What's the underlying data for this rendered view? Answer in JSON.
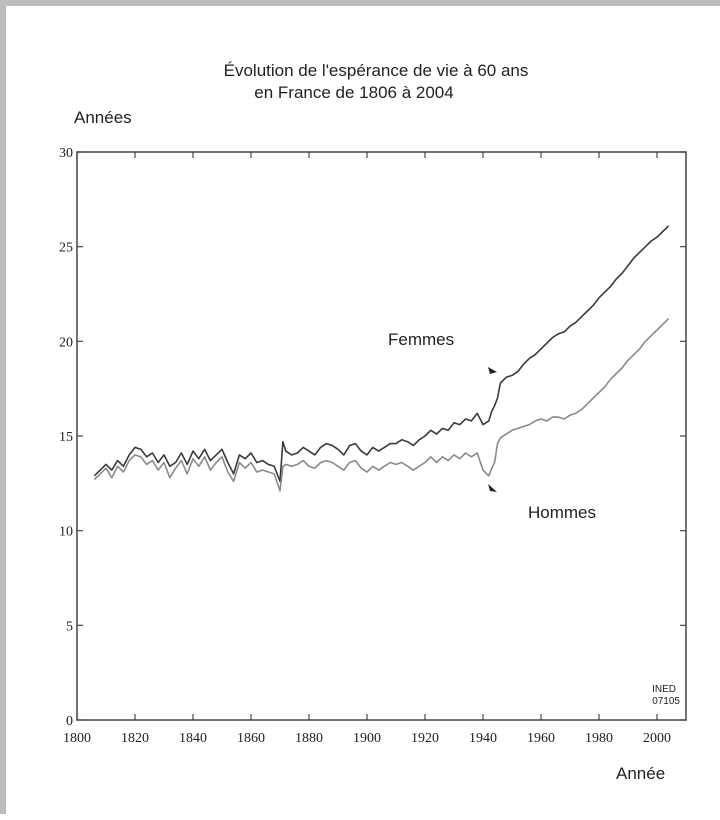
{
  "chart_data": {
    "type": "line",
    "title_line1": "Évolution de l'espérance de vie à 60 ans",
    "title_line2": "en France de 1806 à 2004",
    "ylabel": "Années",
    "xlabel": "Année",
    "ylim": [
      0,
      30
    ],
    "xlim": [
      1800,
      2010
    ],
    "y_ticks": [
      0,
      5,
      10,
      15,
      20,
      25,
      30
    ],
    "x_ticks": [
      1800,
      1820,
      1840,
      1860,
      1880,
      1900,
      1920,
      1940,
      1960,
      1980,
      2000
    ],
    "x_tick_labels": [
      "1800",
      "1820",
      "1840",
      "1860",
      "1880",
      "1900",
      "1920",
      "1940",
      "1960",
      "1980",
      "2000"
    ],
    "grid": false,
    "credit": [
      "INED",
      "07105"
    ],
    "series": [
      {
        "name": "Femmes",
        "color": "#3a3a3a",
        "x": [
          1806,
          1808,
          1810,
          1812,
          1814,
          1816,
          1818,
          1820,
          1822,
          1824,
          1826,
          1828,
          1830,
          1832,
          1834,
          1836,
          1838,
          1840,
          1842,
          1844,
          1846,
          1848,
          1850,
          1852,
          1854,
          1856,
          1858,
          1860,
          1862,
          1864,
          1866,
          1868,
          1870,
          1871,
          1872,
          1874,
          1876,
          1878,
          1880,
          1882,
          1884,
          1886,
          1888,
          1890,
          1892,
          1894,
          1896,
          1898,
          1900,
          1902,
          1904,
          1906,
          1908,
          1910,
          1912,
          1914,
          1916,
          1918,
          1920,
          1922,
          1924,
          1926,
          1928,
          1930,
          1932,
          1934,
          1936,
          1938,
          1940,
          1942,
          1943,
          1944,
          1945,
          1946,
          1948,
          1950,
          1952,
          1954,
          1956,
          1958,
          1960,
          1962,
          1964,
          1966,
          1968,
          1970,
          1972,
          1974,
          1976,
          1978,
          1980,
          1982,
          1984,
          1986,
          1988,
          1990,
          1992,
          1994,
          1996,
          1998,
          2000,
          2002,
          2004
        ],
        "values": [
          12.9,
          13.2,
          13.5,
          13.2,
          13.7,
          13.4,
          14.0,
          14.4,
          14.3,
          13.9,
          14.1,
          13.6,
          14.0,
          13.4,
          13.6,
          14.1,
          13.5,
          14.2,
          13.8,
          14.3,
          13.7,
          14.0,
          14.3,
          13.6,
          13.0,
          14.0,
          13.8,
          14.1,
          13.6,
          13.7,
          13.5,
          13.4,
          12.6,
          14.7,
          14.2,
          14.0,
          14.1,
          14.4,
          14.2,
          14.0,
          14.4,
          14.6,
          14.5,
          14.3,
          14.0,
          14.5,
          14.6,
          14.2,
          14.0,
          14.4,
          14.2,
          14.4,
          14.6,
          14.6,
          14.8,
          14.7,
          14.5,
          14.8,
          15.0,
          15.3,
          15.1,
          15.4,
          15.3,
          15.7,
          15.6,
          15.9,
          15.8,
          16.2,
          15.6,
          15.8,
          16.3,
          16.6,
          17.0,
          17.8,
          18.1,
          18.2,
          18.4,
          18.8,
          19.1,
          19.3,
          19.6,
          19.9,
          20.2,
          20.4,
          20.5,
          20.8,
          21.0,
          21.3,
          21.6,
          21.9,
          22.3,
          22.6,
          22.9,
          23.3,
          23.6,
          24.0,
          24.4,
          24.7,
          25.0,
          25.3,
          25.5,
          25.8,
          26.1
        ]
      },
      {
        "name": "Hommes",
        "color": "#8a8a8a",
        "x": [
          1806,
          1808,
          1810,
          1812,
          1814,
          1816,
          1818,
          1820,
          1822,
          1824,
          1826,
          1828,
          1830,
          1832,
          1834,
          1836,
          1838,
          1840,
          1842,
          1844,
          1846,
          1848,
          1850,
          1852,
          1854,
          1856,
          1858,
          1860,
          1862,
          1864,
          1866,
          1868,
          1870,
          1871,
          1872,
          1874,
          1876,
          1878,
          1880,
          1882,
          1884,
          1886,
          1888,
          1890,
          1892,
          1894,
          1896,
          1898,
          1900,
          1902,
          1904,
          1906,
          1908,
          1910,
          1912,
          1914,
          1916,
          1918,
          1920,
          1922,
          1924,
          1926,
          1928,
          1930,
          1932,
          1934,
          1936,
          1938,
          1940,
          1942,
          1943,
          1944,
          1945,
          1946,
          1948,
          1950,
          1952,
          1954,
          1956,
          1958,
          1960,
          1962,
          1964,
          1966,
          1968,
          1970,
          1972,
          1974,
          1976,
          1978,
          1980,
          1982,
          1984,
          1986,
          1988,
          1990,
          1992,
          1994,
          1996,
          1998,
          2000,
          2002,
          2004
        ],
        "values": [
          12.7,
          13.0,
          13.3,
          12.8,
          13.4,
          13.1,
          13.7,
          14.0,
          13.9,
          13.5,
          13.7,
          13.2,
          13.6,
          12.8,
          13.3,
          13.7,
          13.0,
          13.8,
          13.4,
          13.9,
          13.2,
          13.6,
          13.9,
          13.1,
          12.6,
          13.6,
          13.3,
          13.6,
          13.1,
          13.2,
          13.1,
          13.0,
          12.1,
          13.4,
          13.5,
          13.4,
          13.5,
          13.7,
          13.4,
          13.3,
          13.6,
          13.7,
          13.6,
          13.4,
          13.2,
          13.6,
          13.7,
          13.3,
          13.1,
          13.4,
          13.2,
          13.4,
          13.6,
          13.5,
          13.6,
          13.4,
          13.2,
          13.4,
          13.6,
          13.9,
          13.6,
          13.9,
          13.7,
          14.0,
          13.8,
          14.1,
          13.9,
          14.1,
          13.2,
          12.9,
          13.3,
          13.6,
          14.6,
          14.9,
          15.1,
          15.3,
          15.4,
          15.5,
          15.6,
          15.8,
          15.9,
          15.8,
          16.0,
          16.0,
          15.9,
          16.1,
          16.2,
          16.4,
          16.7,
          17.0,
          17.3,
          17.6,
          18.0,
          18.3,
          18.6,
          19.0,
          19.3,
          19.6,
          20.0,
          20.3,
          20.6,
          20.9,
          21.2
        ]
      }
    ]
  }
}
